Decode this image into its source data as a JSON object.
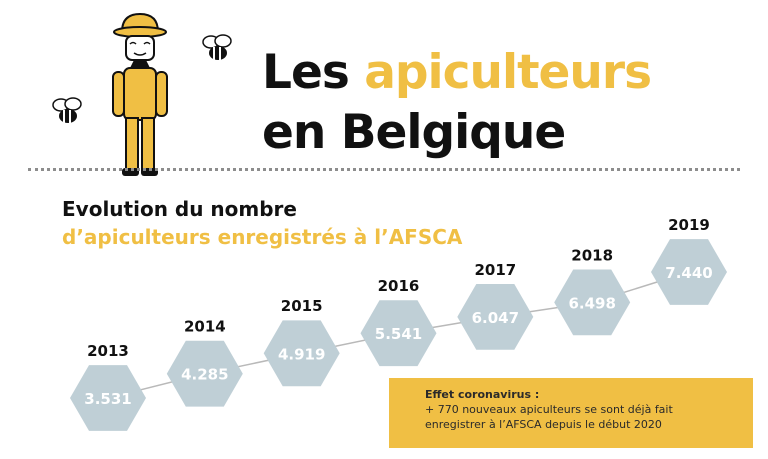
{
  "header": {
    "title_part1": "Les",
    "title_highlight": "apiculteurs",
    "title_line2": "en Belgique"
  },
  "subtitle": {
    "line1": "Evolution du nombre",
    "line2": "d’apiculteurs enregistrés à l’AFSCA"
  },
  "note": {
    "title": "Effet coronavirus :",
    "text": "+ 770 nouveaux apiculteurs se sont déjà fait enregistrer à l’AFSCA depuis le début 2020"
  },
  "colors": {
    "accent": "#f0bf44",
    "hexagon": "#bfcfd6",
    "text": "#111111"
  },
  "icons": [
    "beekeeper-icon",
    "bee-icon",
    "bee-icon"
  ],
  "chart_data": {
    "type": "line",
    "title": "",
    "categories": [
      "2013",
      "2014",
      "2015",
      "2016",
      "2017",
      "2018",
      "2019"
    ],
    "values": [
      3531,
      4285,
      4919,
      5541,
      6047,
      6498,
      7440
    ],
    "value_labels": [
      "3.531",
      "4.285",
      "4.919",
      "5.541",
      "6.047",
      "6.498",
      "7.440"
    ],
    "xlabel": "",
    "ylabel": "",
    "ylim": [
      3531,
      7440
    ],
    "grid": false,
    "legend": "none"
  }
}
